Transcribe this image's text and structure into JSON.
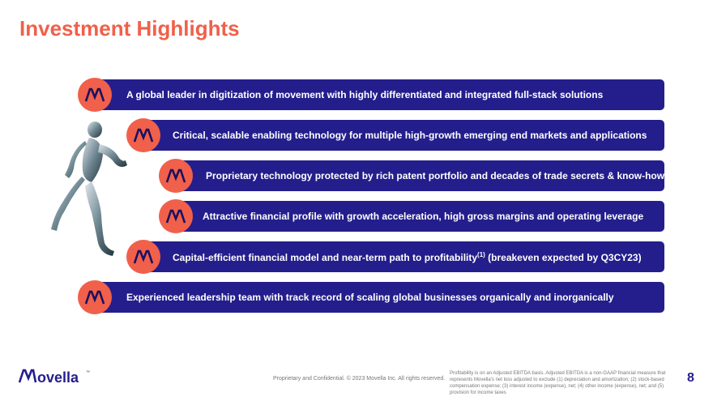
{
  "slide": {
    "title": "Investment Highlights",
    "highlights": [
      {
        "text": "A global leader in digitization of movement with highly differentiated and integrated full-stack solutions"
      },
      {
        "text": "Critical, scalable enabling technology for multiple high-growth emerging end markets and applications"
      },
      {
        "text": "Proprietary technology protected by rich patent portfolio and decades of trade secrets & know-how"
      },
      {
        "text": "Attractive financial profile with growth acceleration, high gross margins and operating leverage"
      },
      {
        "text_before": "Capital-efficient financial model and near-term path to profitability",
        "superscript": "(1)",
        "text_after": " (breakeven expected by Q3CY23)"
      },
      {
        "text": "Experienced leadership team with track record of scaling global businesses organically and inorganically"
      }
    ]
  },
  "footer": {
    "brand": "Movella",
    "trademark": "™",
    "confidential": "Proprietary and Confidential. © 2023 Movella Inc. All rights reserved.",
    "footnote": "Profitability is on an Adjusted EBITDA basis. Adjusted EBITDA is a non-GAAP financial measure that represents Movella’s net loss adjusted to exclude (1) depreciation and amortization; (2) stock-based compensation expense; (3) interest income (expense), net; (4) other income (expense), net; and (5) provision for income taxes",
    "page_number": "8"
  },
  "colors": {
    "accent": "#f0604b",
    "brand_navy": "#241e8c",
    "bar_text": "#ffffff"
  },
  "icons": {
    "badge": "movella-m-icon",
    "figure": "motion-capture-figure"
  }
}
